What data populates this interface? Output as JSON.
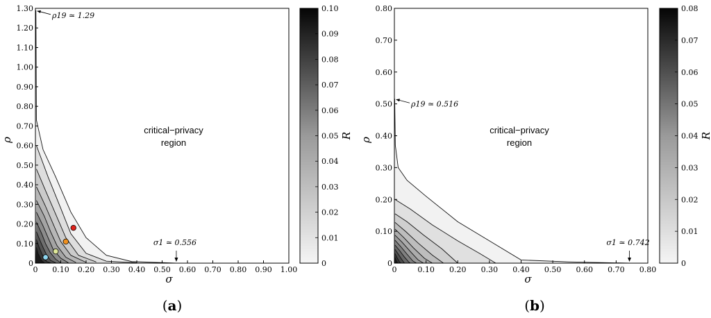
{
  "chart_data": [
    {
      "type": "contour",
      "panel_label": "a",
      "xlabel": "σ",
      "ylabel": "ρ",
      "xlim": [
        0,
        1.0
      ],
      "ylim": [
        0,
        1.3
      ],
      "xticks": [
        "0",
        "0.10",
        "0.20",
        "0.30",
        "0.40",
        "0.50",
        "0.60",
        "0.70",
        "0.80",
        "0.90",
        "1.00"
      ],
      "yticks": [
        "0",
        "0.10",
        "0.20",
        "0.30",
        "0.40",
        "0.50",
        "0.60",
        "0.70",
        "0.80",
        "0.90",
        "1.00",
        "1.10",
        "1.20",
        "1.30"
      ],
      "colorbar": {
        "label": "R",
        "range": [
          0,
          0.1
        ],
        "ticks": [
          "0",
          "0.01",
          "0.02",
          "0.03",
          "0.04",
          "0.05",
          "0.06",
          "0.07",
          "0.08",
          "0.09",
          "0.10"
        ]
      },
      "region_label": [
        "critical−privacy",
        "region"
      ],
      "contours": [
        [
          [
            0.002,
            1.29
          ],
          [
            0.004,
            0.73
          ],
          [
            0.03,
            0.58
          ],
          [
            0.08,
            0.44
          ],
          [
            0.14,
            0.26
          ],
          [
            0.2,
            0.13
          ],
          [
            0.28,
            0.04
          ],
          [
            0.38,
            0.008
          ],
          [
            0.556,
            0.0
          ]
        ],
        [
          [
            0.004,
            0.6
          ],
          [
            0.05,
            0.44
          ],
          [
            0.1,
            0.28
          ],
          [
            0.14,
            0.15
          ],
          [
            0.2,
            0.05
          ],
          [
            0.28,
            0.01
          ],
          [
            0.4,
            0.002
          ]
        ],
        [
          [
            0.004,
            0.48
          ],
          [
            0.04,
            0.37
          ],
          [
            0.08,
            0.25
          ],
          [
            0.12,
            0.13
          ],
          [
            0.17,
            0.04
          ],
          [
            0.24,
            0.006
          ]
        ],
        [
          [
            0.004,
            0.39
          ],
          [
            0.04,
            0.29
          ],
          [
            0.07,
            0.2
          ],
          [
            0.1,
            0.11
          ],
          [
            0.14,
            0.04
          ],
          [
            0.2,
            0.004
          ]
        ],
        [
          [
            0.004,
            0.32
          ],
          [
            0.035,
            0.24
          ],
          [
            0.06,
            0.16
          ],
          [
            0.085,
            0.09
          ],
          [
            0.12,
            0.03
          ],
          [
            0.16,
            0.003
          ]
        ],
        [
          [
            0.004,
            0.26
          ],
          [
            0.03,
            0.19
          ],
          [
            0.05,
            0.13
          ],
          [
            0.07,
            0.07
          ],
          [
            0.1,
            0.025
          ],
          [
            0.13,
            0.002
          ]
        ],
        [
          [
            0.004,
            0.21
          ],
          [
            0.025,
            0.15
          ],
          [
            0.04,
            0.1
          ],
          [
            0.058,
            0.055
          ],
          [
            0.08,
            0.02
          ],
          [
            0.1,
            0.002
          ]
        ],
        [
          [
            0.004,
            0.16
          ],
          [
            0.02,
            0.11
          ],
          [
            0.032,
            0.075
          ],
          [
            0.045,
            0.04
          ],
          [
            0.06,
            0.014
          ],
          [
            0.08,
            0.002
          ]
        ],
        [
          [
            0.004,
            0.12
          ],
          [
            0.015,
            0.08
          ],
          [
            0.025,
            0.05
          ],
          [
            0.034,
            0.025
          ],
          [
            0.045,
            0.008
          ],
          [
            0.06,
            0.001
          ]
        ],
        [
          [
            0.004,
            0.08
          ],
          [
            0.01,
            0.05
          ],
          [
            0.018,
            0.03
          ],
          [
            0.025,
            0.012
          ],
          [
            0.035,
            0.002
          ]
        ]
      ],
      "points": [
        {
          "sigma": 0.15,
          "rho": 0.18,
          "color": "#e0221a"
        },
        {
          "sigma": 0.12,
          "rho": 0.11,
          "color": "#f0901e"
        },
        {
          "sigma": 0.08,
          "rho": 0.06,
          "color": "#dfe89a"
        },
        {
          "sigma": 0.04,
          "rho": 0.03,
          "color": "#8fd6f0"
        }
      ],
      "annotations": [
        {
          "text": "ρ19 ≃ 1.29",
          "x": 0.0,
          "y": 1.29
        },
        {
          "text": "σ1 ≃ 0.556",
          "x": 0.556,
          "y": 0.0
        }
      ]
    },
    {
      "type": "contour",
      "panel_label": "b",
      "xlabel": "σ",
      "ylabel": "ρ",
      "xlim": [
        0,
        0.8
      ],
      "ylim": [
        0,
        0.8
      ],
      "xticks": [
        "0",
        "0.10",
        "0.20",
        "0.30",
        "0.40",
        "0.50",
        "0.60",
        "0.70",
        "0.80"
      ],
      "yticks": [
        "0",
        "0.10",
        "0.20",
        "0.30",
        "0.40",
        "0.50",
        "0.60",
        "0.70",
        "0.80"
      ],
      "colorbar": {
        "label": "R",
        "range": [
          0,
          0.08
        ],
        "ticks": [
          "0",
          "0.01",
          "0.02",
          "0.03",
          "0.04",
          "0.05",
          "0.06",
          "0.07",
          "0.08"
        ]
      },
      "region_label": [
        "critical−privacy",
        "region"
      ],
      "contours": [
        [
          [
            0.001,
            0.516
          ],
          [
            0.003,
            0.37
          ],
          [
            0.012,
            0.3
          ],
          [
            0.04,
            0.26
          ],
          [
            0.1,
            0.21
          ],
          [
            0.2,
            0.13
          ],
          [
            0.3,
            0.07
          ],
          [
            0.4,
            0.01
          ],
          [
            0.55,
            0.004
          ],
          [
            0.742,
            0.0
          ]
        ],
        [
          [
            0.002,
            0.2
          ],
          [
            0.05,
            0.17
          ],
          [
            0.12,
            0.12
          ],
          [
            0.2,
            0.07
          ],
          [
            0.27,
            0.03
          ],
          [
            0.32,
            0.0
          ]
        ],
        [
          [
            0.002,
            0.155
          ],
          [
            0.04,
            0.13
          ],
          [
            0.09,
            0.09
          ],
          [
            0.15,
            0.045
          ],
          [
            0.2,
            0.0
          ]
        ],
        [
          [
            0.002,
            0.128
          ],
          [
            0.035,
            0.1
          ],
          [
            0.075,
            0.063
          ],
          [
            0.12,
            0.025
          ],
          [
            0.155,
            0.0
          ]
        ],
        [
          [
            0.002,
            0.107
          ],
          [
            0.03,
            0.08
          ],
          [
            0.06,
            0.048
          ],
          [
            0.095,
            0.015
          ],
          [
            0.12,
            0.0
          ]
        ],
        [
          [
            0.002,
            0.088
          ],
          [
            0.025,
            0.065
          ],
          [
            0.05,
            0.037
          ],
          [
            0.075,
            0.01
          ],
          [
            0.092,
            0.0
          ]
        ],
        [
          [
            0.002,
            0.072
          ],
          [
            0.02,
            0.052
          ],
          [
            0.04,
            0.028
          ],
          [
            0.058,
            0.007
          ],
          [
            0.07,
            0.0
          ]
        ],
        [
          [
            0.002,
            0.057
          ],
          [
            0.016,
            0.04
          ],
          [
            0.031,
            0.02
          ],
          [
            0.045,
            0.004
          ],
          [
            0.05,
            0.0
          ]
        ],
        [
          [
            0.002,
            0.043
          ],
          [
            0.012,
            0.029
          ],
          [
            0.023,
            0.012
          ],
          [
            0.032,
            0.0
          ]
        ],
        [
          [
            0.002,
            0.03
          ],
          [
            0.008,
            0.018
          ],
          [
            0.015,
            0.006
          ],
          [
            0.02,
            0.0
          ]
        ],
        [
          [
            0.002,
            0.018
          ],
          [
            0.005,
            0.01
          ],
          [
            0.01,
            0.0
          ]
        ]
      ],
      "points": [],
      "annotations": [
        {
          "text": "ρ19 ≃ 0.516",
          "x": 0.0,
          "y": 0.516
        },
        {
          "text": "σ1 ≃ 0.742",
          "x": 0.742,
          "y": 0.0
        }
      ]
    }
  ]
}
